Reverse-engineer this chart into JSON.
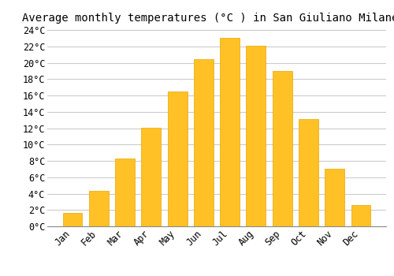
{
  "title": "Average monthly temperatures (°C ) in San Giuliano Milanese",
  "months": [
    "Jan",
    "Feb",
    "Mar",
    "Apr",
    "May",
    "Jun",
    "Jul",
    "Aug",
    "Sep",
    "Oct",
    "Nov",
    "Dec"
  ],
  "temperatures": [
    1.6,
    4.3,
    8.3,
    12.1,
    16.5,
    20.4,
    23.0,
    22.1,
    19.0,
    13.1,
    7.0,
    2.6
  ],
  "bar_color": "#FFC125",
  "bar_edge_color": "#E8A800",
  "ylim": [
    0,
    24
  ],
  "ytick_step": 2,
  "background_color": "#ffffff",
  "grid_color": "#cccccc",
  "title_fontsize": 10,
  "tick_fontsize": 8.5,
  "font_family": "monospace"
}
